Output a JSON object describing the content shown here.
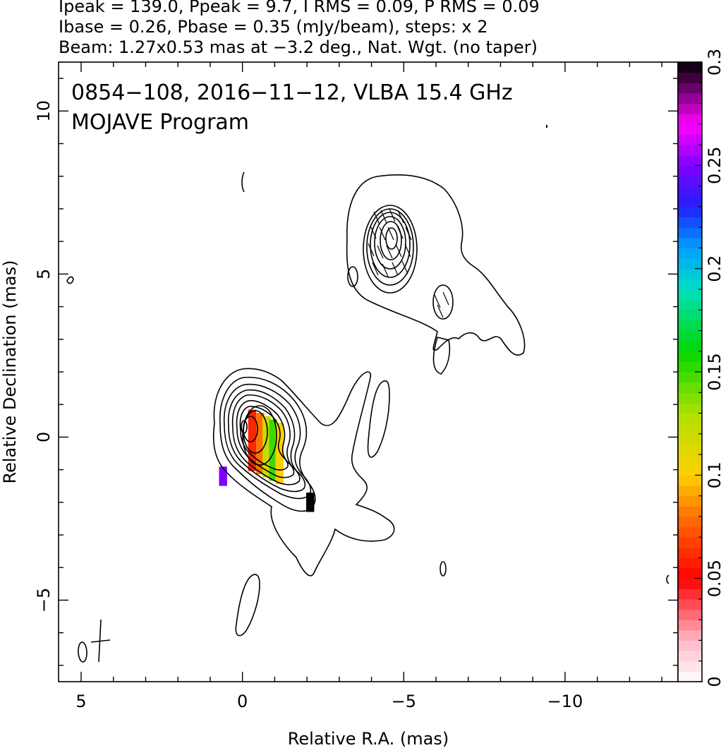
{
  "header": {
    "line1": "Ipeak = 139.0, Ppeak = 9.7, I RMS = 0.09, P RMS = 0.09",
    "line2": "Ibase = 0.26, Pbase = 0.35 (mJy/beam), steps: x 2",
    "line3": "Beam: 1.27x0.53 mas at −3.2 deg., Nat. Wgt. (no taper)"
  },
  "chart_data": {
    "type": "heatmap",
    "title": "0854−108, 2016−11−12, VLBA 15.4 GHz",
    "subtitle": "MOJAVE Program",
    "xlabel": "Relative R.A. (mas)",
    "ylabel": "Relative Declination (mas)",
    "xlim": [
      5.7,
      -13.5
    ],
    "ylim": [
      -7.5,
      11.5
    ],
    "x_ticks": [
      5,
      0,
      -5,
      -10
    ],
    "x_tick_labels": [
      "5",
      "0",
      "−5",
      "−10"
    ],
    "y_ticks": [
      -5,
      0,
      5,
      10
    ],
    "y_tick_labels": [
      "−5",
      "0",
      "5",
      "10"
    ],
    "ipeak_mJy_per_beam": 139.0,
    "ppeak_mJy_per_beam": 9.7,
    "i_rms": 0.09,
    "p_rms": 0.09,
    "ibase": 0.26,
    "pbase": 0.35,
    "contour_step": 2,
    "beam": {
      "major_mas": 1.27,
      "minor_mas": 0.53,
      "pa_deg": -3.2,
      "weighting": "Nat. Wgt. (no taper)"
    },
    "colorbar": {
      "min": 0,
      "max": 0.3,
      "ticks": [
        0,
        0.05,
        0.1,
        0.15,
        0.2,
        0.25,
        0.3
      ],
      "tick_labels": [
        "0",
        "0.05",
        "0.1",
        "0.15",
        "0.2",
        "0.25",
        "0.3"
      ],
      "stops": [
        {
          "v": 0.0,
          "color": "#ffffff"
        },
        {
          "v": 0.02,
          "color": "#ffb8c8"
        },
        {
          "v": 0.05,
          "color": "#ff0000"
        },
        {
          "v": 0.08,
          "color": "#ff7000"
        },
        {
          "v": 0.1,
          "color": "#ffd000"
        },
        {
          "v": 0.13,
          "color": "#b0e000"
        },
        {
          "v": 0.16,
          "color": "#00d800"
        },
        {
          "v": 0.19,
          "color": "#00e0c0"
        },
        {
          "v": 0.21,
          "color": "#00a0ff"
        },
        {
          "v": 0.23,
          "color": "#2020ff"
        },
        {
          "v": 0.25,
          "color": "#8000ff"
        },
        {
          "v": 0.27,
          "color": "#ff00ff"
        },
        {
          "v": 0.3,
          "color": "#000000"
        }
      ]
    },
    "core_component": {
      "ra": 0.0,
      "dec": 0.0
    },
    "jet_component": {
      "ra": -4.6,
      "dec": 5.7
    },
    "fractional_polarization_patches": [
      {
        "ra": -0.3,
        "dec": -0.1,
        "value": 0.06
      },
      {
        "ra": -0.55,
        "dec": -0.2,
        "value": 0.08
      },
      {
        "ra": -0.75,
        "dec": -0.3,
        "value": 0.12
      },
      {
        "ra": -0.95,
        "dec": -0.4,
        "value": 0.15
      },
      {
        "ra": -1.15,
        "dec": -0.5,
        "value": 0.1
      },
      {
        "ra": 0.6,
        "dec": -1.2,
        "value": 0.25
      },
      {
        "ra": -2.1,
        "dec": -2.0,
        "value": 0.3
      }
    ]
  }
}
